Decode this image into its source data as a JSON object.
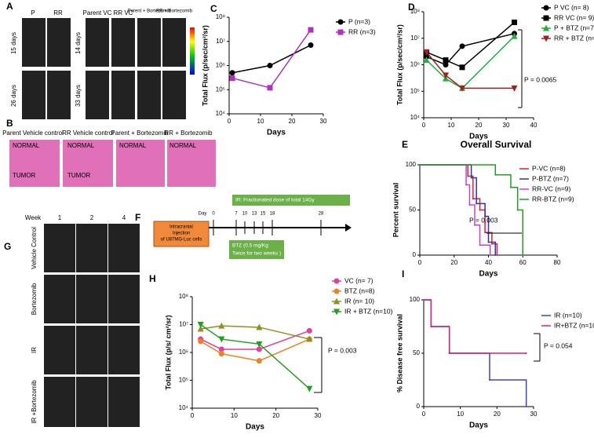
{
  "panel_a": {
    "letter": "A",
    "left_cols": [
      "P",
      "RR"
    ],
    "left_rows": [
      "15 days",
      "26 days"
    ],
    "right_cols": [
      "Parent VC",
      "RR VC",
      "Parent + Bortezomib",
      "RR + Bortezomib"
    ],
    "right_rows": [
      "14 days",
      "33 days"
    ]
  },
  "panel_b": {
    "letter": "B",
    "cols": [
      "Parent Vehicle control",
      "RR Vehicle control",
      "Parent + Bortezomib",
      "RR + Bortezomib"
    ],
    "normal": "NORMAL",
    "tumor": "TUMOR"
  },
  "panel_f": {
    "letter": "F",
    "injection": [
      "Intracranial",
      "Injection",
      "of U87MG-Luc cells"
    ],
    "day": "Day",
    "days": [
      "0",
      "7",
      "10",
      "13",
      "15",
      "18",
      "28"
    ],
    "ir": "IR: Fractionated dose of total 14Gy",
    "btz": [
      "BTZ (0.5 mg/Kg",
      "Twice for two weeks )"
    ]
  },
  "panel_g": {
    "letter": "G",
    "week": "Week",
    "weeks": [
      "1",
      "2",
      "4"
    ],
    "rows": [
      "Vehicle Control",
      "Bortezomib",
      "IR",
      "IR +Bortezomib"
    ]
  },
  "chart_data": [
    {
      "type": "line",
      "panel": "C",
      "xlabel": "Days",
      "ylabel": "Total Flux (p/sec/cm²/sr)",
      "log_y": true,
      "xlim": [
        0,
        30
      ],
      "xticks": [
        0,
        10,
        20,
        30
      ],
      "ylim": [
        10000,
        100000000
      ],
      "yticks": [
        {
          "value": 10000,
          "label": "10⁴"
        },
        {
          "value": 100000,
          "label": "10⁵"
        },
        {
          "value": 1000000,
          "label": "10⁶"
        },
        {
          "value": 10000000,
          "label": "10⁷"
        },
        {
          "value": 100000000,
          "label": "10⁸"
        }
      ],
      "series": [
        {
          "name": "P (n=3)",
          "color": "#000000",
          "marker": "circle",
          "x": [
            1,
            13,
            26
          ],
          "values": [
            500000,
            1000000,
            7000000
          ]
        },
        {
          "name": "RR (n=3)",
          "color": "#b030c0",
          "marker": "square",
          "x": [
            1,
            13,
            26
          ],
          "values": [
            300000,
            120000,
            30000000
          ]
        }
      ]
    },
    {
      "type": "line",
      "panel": "D",
      "xlabel": "Days",
      "ylabel": "Total Flux (p/sec/cm²/sr)",
      "log_y": true,
      "annotation": "P = 0.0065",
      "xlim": [
        0,
        40
      ],
      "xticks": [
        0,
        10,
        20,
        30,
        40
      ],
      "ylim": [
        10000,
        100000000
      ],
      "yticks": [
        {
          "value": 10000,
          "label": "10⁴"
        },
        {
          "value": 100000,
          "label": "10⁵"
        },
        {
          "value": 1000000,
          "label": "10⁶"
        },
        {
          "value": 10000000,
          "label": "10⁷"
        },
        {
          "value": 100000000,
          "label": "10⁸"
        }
      ],
      "series": [
        {
          "name": "P VC (n= 8)",
          "color": "#000000",
          "marker": "circle",
          "x": [
            1,
            8,
            14,
            33
          ],
          "values": [
            2000000,
            1000000,
            5000000,
            15000000
          ]
        },
        {
          "name": "RR VC (n= 9)",
          "color": "#000000",
          "marker": "square",
          "x": [
            1,
            8,
            14,
            33
          ],
          "values": [
            3000000,
            1500000,
            800000,
            40000000
          ]
        },
        {
          "name": "P + BTZ (n=7)",
          "color": "#20b040",
          "marker": "triangle",
          "x": [
            1,
            8,
            14,
            33
          ],
          "values": [
            1500000,
            300000,
            130000,
            12000000
          ]
        },
        {
          "name": "RR + BTZ (n=9)",
          "color": "#a02020",
          "marker": "triangle-down",
          "x": [
            1,
            8,
            14,
            33
          ],
          "values": [
            3000000,
            400000,
            130000,
            130000
          ]
        }
      ]
    },
    {
      "type": "step",
      "panel": "E",
      "title": "Overall Survival",
      "xlabel": "Days",
      "ylabel": "Percent survival",
      "annotation": "P = 0.003",
      "xlim": [
        0,
        80
      ],
      "xticks": [
        0,
        20,
        40,
        60,
        80
      ],
      "ylim": [
        0,
        100
      ],
      "yticks": [
        0,
        50,
        100
      ],
      "series": [
        {
          "name": "P-VC (n=8)",
          "color": "#e02020",
          "x": [
            0,
            28,
            31,
            35,
            38,
            42,
            45
          ],
          "values": [
            100,
            87.5,
            62.5,
            50,
            25,
            12.5,
            0
          ]
        },
        {
          "name": "P-BTZ (n=7)",
          "color": "#3030c0",
          "x": [
            0,
            30,
            33,
            38,
            40,
            44
          ],
          "values": [
            100,
            85.7,
            57.1,
            42.9,
            14.3,
            0
          ]
        },
        {
          "name": "RR-VC (n=9)",
          "color": "#d040d0",
          "x": [
            0,
            27,
            29,
            32,
            35,
            41
          ],
          "values": [
            100,
            77.8,
            55.6,
            33.3,
            11.1,
            0
          ]
        },
        {
          "name": "RR-BTZ (n=9)",
          "color": "#20a020",
          "x": [
            0,
            44,
            53,
            57,
            60
          ],
          "values": [
            100,
            88.9,
            75,
            50,
            0
          ]
        }
      ]
    },
    {
      "type": "line",
      "panel": "H",
      "xlabel": "Days",
      "ylabel": "Total Flux (p/s/ cm²/sr)",
      "log_y": true,
      "annotation": "P = 0.003",
      "xlim": [
        0,
        30
      ],
      "xticks": [
        0,
        10,
        20,
        30
      ],
      "ylim": [
        10000,
        100000000
      ],
      "yticks": [
        {
          "value": 10000,
          "label": "10⁴"
        },
        {
          "value": 100000,
          "label": "10⁵"
        },
        {
          "value": 1000000,
          "label": "10⁶"
        },
        {
          "value": 10000000,
          "label": "10⁷"
        },
        {
          "value": 100000000,
          "label": "10⁸"
        }
      ],
      "series": [
        {
          "name": "VC (n= 7)",
          "color": "#e040a0",
          "marker": "circle",
          "x": [
            2,
            7,
            16,
            28
          ],
          "values": [
            3000000,
            1300000,
            1300000,
            6000000
          ]
        },
        {
          "name": "BTZ (n=8)",
          "color": "#f08020",
          "marker": "circle",
          "x": [
            2,
            7,
            16,
            28
          ],
          "values": [
            2500000,
            900000,
            500000,
            3000000
          ]
        },
        {
          "name": "IR (n= 10)",
          "color": "#909020",
          "marker": "triangle",
          "x": [
            2,
            7,
            16,
            28
          ],
          "values": [
            7000000,
            9000000,
            8000000,
            3000000
          ]
        },
        {
          "name": "IR + BTZ (n=10)",
          "color": "#20a020",
          "marker": "triangle-down",
          "x": [
            2,
            7,
            16,
            28
          ],
          "values": [
            10000000,
            3000000,
            2000000,
            50000
          ]
        }
      ]
    },
    {
      "type": "step",
      "panel": "I",
      "xlabel": "Days",
      "ylabel": "% Disease free survival",
      "annotation": "P = 0.054",
      "xlim": [
        0,
        30
      ],
      "xticks": [
        0,
        10,
        20,
        30
      ],
      "ylim": [
        0,
        100
      ],
      "yticks": [
        0,
        50,
        100
      ],
      "series": [
        {
          "name": "IR (n=10)",
          "color": "#4040d0",
          "x": [
            0,
            2,
            7,
            18,
            28
          ],
          "values": [
            100,
            75,
            50,
            25,
            0
          ]
        },
        {
          "name": "IR+BTZ (n=10)",
          "color": "#d02080",
          "x": [
            0,
            2,
            7,
            28
          ],
          "values": [
            100,
            75,
            50,
            50
          ]
        }
      ]
    }
  ]
}
